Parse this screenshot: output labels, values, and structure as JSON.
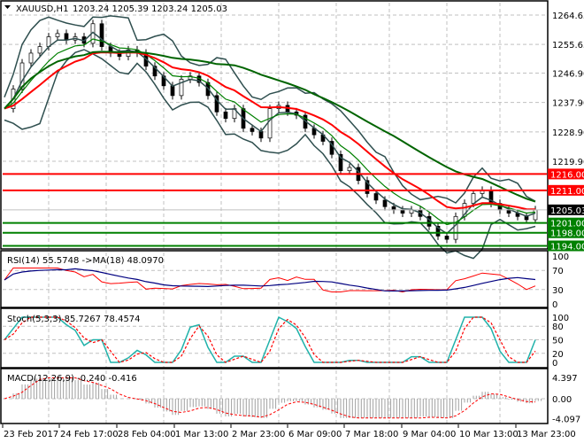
{
  "header": {
    "symbol": "XAUUSD,H1",
    "ohlc": "1203.24 1205.39 1203.24 1205.03",
    "menu_icon": "triangle-down-icon"
  },
  "colors": {
    "price": "#000000",
    "ma_fast": "#2f4f4f",
    "ma_mid": "#ff0000",
    "ma_slow": "#006400",
    "bands": "#2f4f4f",
    "resistance": "#ff0000",
    "support": "#008000",
    "rsi": "#ff0000",
    "rsi_ma": "#000080",
    "stoch_main": "#20b2aa",
    "stoch_signal": "#ff0000",
    "macd_hist": "#a0a0a0",
    "macd_signal": "#ff0000"
  },
  "chart_data": [
    {
      "type": "line",
      "name": "main",
      "title": "XAUUSD,H1",
      "x_ticks": [
        "23 Feb 2017",
        "24 Feb 17:00",
        "28 Feb 04:00",
        "1 Mar 13:00",
        "2 Mar 23:00",
        "6 Mar 09:00",
        "7 Mar 18:00",
        "9 Mar 04:00",
        "10 Mar 13:00",
        "13 Mar 23:00"
      ],
      "y_ticks": [
        "1264.65",
        "1255.65",
        "1246.90",
        "1237.90",
        "1228.90",
        "1219.90"
      ],
      "ylim": [
        1191,
        1268
      ],
      "close": [
        1236,
        1242,
        1250,
        1253,
        1255,
        1258,
        1259,
        1257,
        1258,
        1256,
        1262,
        1255,
        1253,
        1252,
        1254,
        1253,
        1249,
        1246,
        1243,
        1240,
        1245,
        1246,
        1244,
        1240,
        1235,
        1233,
        1236,
        1230,
        1229,
        1227,
        1236,
        1237,
        1235,
        1234,
        1230,
        1228,
        1226,
        1222,
        1217,
        1218,
        1214,
        1210,
        1208,
        1206,
        1205,
        1204,
        1205,
        1203,
        1200,
        1197,
        1196,
        1203,
        1207,
        1210,
        1211,
        1207,
        1205,
        1204,
        1203,
        1202,
        1205.03
      ],
      "levels": [
        {
          "value": 1216.0,
          "label": "1216.00",
          "kind": "resistance"
        },
        {
          "value": 1211.0,
          "label": "1211.00",
          "kind": "resistance"
        },
        {
          "value": 1201.0,
          "label": "1201.00",
          "kind": "support"
        },
        {
          "value": 1198.0,
          "label": "1198.00",
          "kind": "support"
        },
        {
          "value": 1194.0,
          "label": "1194.00",
          "kind": "support"
        }
      ],
      "current_price": {
        "value": 1205.03,
        "label": "1205.03"
      }
    },
    {
      "type": "line",
      "name": "rsi",
      "title": "RSI(14) 55.5748  ->MA(18) 48.0970",
      "y_ticks": [
        "100",
        "70",
        "30",
        "0"
      ],
      "ylim": [
        0,
        100
      ]
    },
    {
      "type": "line",
      "name": "stoch",
      "title": "Stoch(5,3,3) 85.7267 78.4574",
      "y_ticks": [
        "100",
        "80",
        "50",
        "20",
        "0"
      ],
      "ylim": [
        0,
        100
      ]
    },
    {
      "type": "bar",
      "name": "macd",
      "title": "MACD(12,26,9) -0.240 -0.416",
      "y_ticks": [
        "4.397",
        "0.00",
        "-4.097"
      ],
      "ylim": [
        -4.097,
        4.397
      ]
    }
  ]
}
